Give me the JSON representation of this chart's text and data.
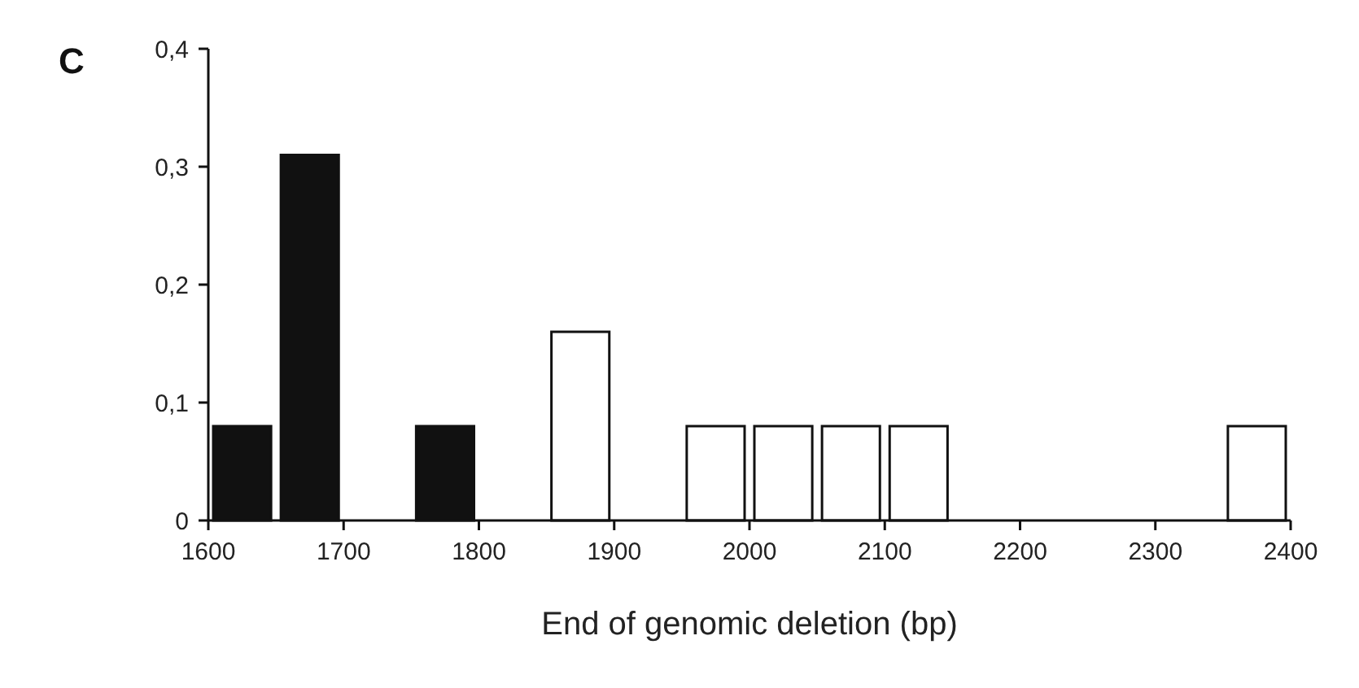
{
  "chart_data": {
    "type": "histogram",
    "xlabel": "End of genomic deletion (bp)",
    "annotations": [
      "C"
    ],
    "bins": [
      1600,
      1650,
      1700,
      1750,
      1800,
      1850,
      1900,
      1950,
      2000,
      2050,
      2100,
      2150,
      2200,
      2250,
      2300,
      2350,
      2400
    ],
    "values": [
      0.08,
      0.31,
      0,
      0.08,
      0,
      0.16,
      0,
      0.08,
      0.08,
      0.08,
      0.08,
      0,
      0,
      0,
      0,
      0.08
    ],
    "colors": [
      "#111111",
      "#111111",
      "#111111",
      "#111111",
      "#ffffff",
      "#ffffff",
      "#ffffff",
      "#ffffff",
      "#ffffff",
      "#ffffff",
      "#ffffff",
      "#ffffff",
      "#ffffff",
      "#ffffff",
      "#ffffff",
      "#ffffff"
    ],
    "xlim": [
      1600,
      2400
    ],
    "xticks": [
      1600,
      1700,
      1800,
      1900,
      2000,
      2100,
      2200,
      2300,
      2400
    ],
    "ylim": [
      0,
      0.4
    ],
    "yticks": [
      0,
      {
        "value": 0.1,
        "label": "0,1"
      },
      {
        "value": 0.2,
        "label": "0,2"
      },
      {
        "value": 0.3,
        "label": "0,3"
      },
      {
        "value": 0.4,
        "label": "0,4"
      }
    ],
    "grid": false
  }
}
